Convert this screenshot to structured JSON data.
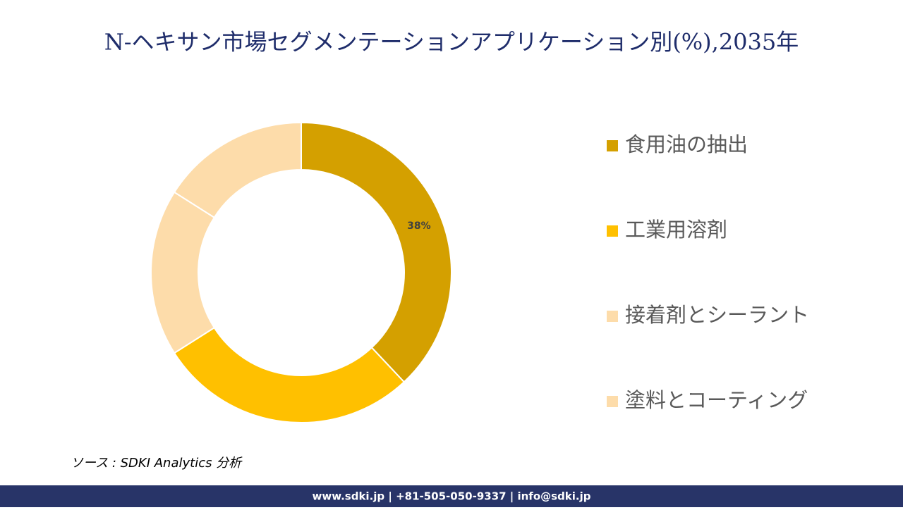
{
  "chart_data": {
    "type": "donut",
    "title": "N-ヘキサン市場セグメンテーションアプリケーション別(%),2035年",
    "categories": [
      "食用油の抽出",
      "工業用溶剤",
      "接着剤とシーラント",
      "塗料とコーティング"
    ],
    "values": [
      38,
      28,
      18,
      16
    ],
    "value_labels": [
      "38%",
      null,
      null,
      null
    ],
    "colors": [
      "#d4a000",
      "#ffc000",
      "#fddcaa",
      "#fddcaa"
    ]
  },
  "source": "ソース : SDKI Analytics 分析",
  "footer": "www.sdki.jp | +81-505-050-9337 | info@sdki.jp"
}
